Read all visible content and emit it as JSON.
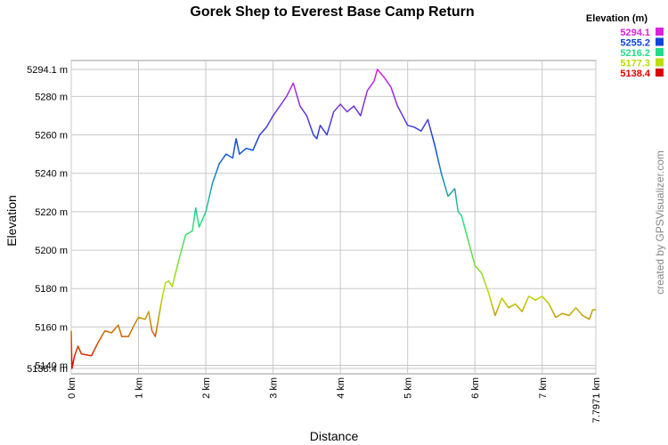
{
  "chart_data": {
    "type": "line",
    "title": "Gorek Shep to Everest Base Camp Return",
    "x_label": "Distance",
    "y_label": "Elevation",
    "watermark": "created by GPSVisualizer.com",
    "legend": {
      "title": "Elevation (m)",
      "entries": [
        {
          "value": 5294.1,
          "color": "#dd22dd"
        },
        {
          "value": 5255.2,
          "color": "#1144dd"
        },
        {
          "value": 5216.2,
          "color": "#22dd88"
        },
        {
          "value": 5177.3,
          "color": "#bbdd00"
        },
        {
          "value": 5138.4,
          "color": "#dd0000"
        }
      ]
    },
    "grid": true,
    "xlim": [
      0,
      7.7971
    ],
    "ylim": [
      5138.4,
      5294.1
    ],
    "xticks": [
      {
        "value": 0,
        "label": "0 km"
      },
      {
        "value": 1,
        "label": "1 km"
      },
      {
        "value": 2,
        "label": "2 km"
      },
      {
        "value": 3,
        "label": "3 km"
      },
      {
        "value": 4,
        "label": "4 km"
      },
      {
        "value": 5,
        "label": "5 km"
      },
      {
        "value": 6,
        "label": "6 km"
      },
      {
        "value": 7,
        "label": "7 km"
      },
      {
        "value": 7.7971,
        "label": "7.7971 km"
      }
    ],
    "yticks": [
      {
        "value": 5138.4,
        "label": "5138.4 m"
      },
      {
        "value": 5140,
        "label": "5140 m"
      },
      {
        "value": 5160,
        "label": "5160 m"
      },
      {
        "value": 5180,
        "label": "5180 m"
      },
      {
        "value": 5200,
        "label": "5200 m"
      },
      {
        "value": 5220,
        "label": "5220 m"
      },
      {
        "value": 5240,
        "label": "5240 m"
      },
      {
        "value": 5260,
        "label": "5260 m"
      },
      {
        "value": 5280,
        "label": "5280 m"
      },
      {
        "value": 5294.1,
        "label": "5294.1 m"
      }
    ],
    "x": [
      0,
      0.01,
      0.05,
      0.1,
      0.15,
      0.3,
      0.4,
      0.5,
      0.6,
      0.7,
      0.75,
      0.85,
      0.95,
      1.0,
      1.1,
      1.15,
      1.2,
      1.25,
      1.3,
      1.35,
      1.4,
      1.45,
      1.5,
      1.6,
      1.7,
      1.8,
      1.85,
      1.9,
      2.0,
      2.1,
      2.2,
      2.3,
      2.4,
      2.45,
      2.5,
      2.6,
      2.7,
      2.8,
      2.9,
      3.0,
      3.1,
      3.2,
      3.3,
      3.4,
      3.5,
      3.6,
      3.65,
      3.7,
      3.8,
      3.9,
      4.0,
      4.1,
      4.2,
      4.3,
      4.4,
      4.5,
      4.55,
      4.65,
      4.75,
      4.85,
      5.0,
      5.1,
      5.2,
      5.3,
      5.4,
      5.5,
      5.6,
      5.7,
      5.75,
      5.8,
      5.9,
      6.0,
      6.1,
      6.2,
      6.3,
      6.4,
      6.5,
      6.6,
      6.7,
      6.8,
      6.9,
      7.0,
      7.1,
      7.2,
      7.3,
      7.4,
      7.5,
      7.6,
      7.7,
      7.75,
      7.7971
    ],
    "values": [
      5158,
      5138.4,
      5145,
      5150,
      5146,
      5145,
      5152,
      5158,
      5157,
      5161,
      5155,
      5155,
      5162,
      5165,
      5164,
      5168,
      5158,
      5155,
      5165,
      5175,
      5183,
      5184,
      5181,
      5195,
      5208,
      5210,
      5222,
      5212,
      5220,
      5235,
      5245,
      5250,
      5248,
      5258,
      5250,
      5253,
      5252,
      5260,
      5264,
      5270,
      5275,
      5280,
      5287,
      5275,
      5270,
      5260,
      5258,
      5265,
      5260,
      5272,
      5276,
      5272,
      5275,
      5270,
      5283,
      5288,
      5294.1,
      5290,
      5285,
      5275,
      5265,
      5264,
      5262,
      5268,
      5255,
      5240,
      5228,
      5232,
      5220,
      5218,
      5205,
      5192,
      5188,
      5178,
      5166,
      5175,
      5170,
      5172,
      5168,
      5176,
      5174,
      5176,
      5172,
      5165,
      5167,
      5166,
      5170,
      5166,
      5164,
      5169,
      5169
    ]
  }
}
